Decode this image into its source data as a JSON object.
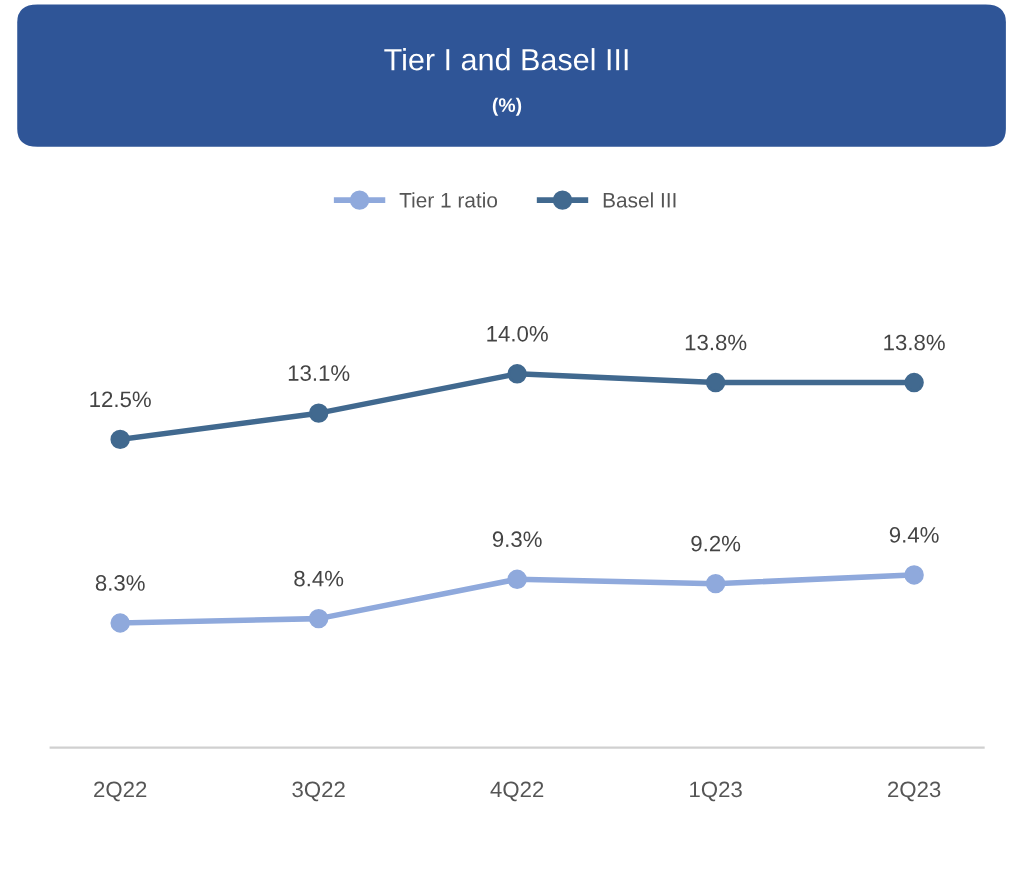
{
  "chart_data": {
    "type": "line",
    "title": "Tier I and Basel III",
    "subtitle": "(%)",
    "categories": [
      "2Q22",
      "3Q22",
      "4Q22",
      "1Q23",
      "2Q23"
    ],
    "series": [
      {
        "name": "Tier 1 ratio",
        "color": "#8fa9dc",
        "values": [
          8.3,
          8.4,
          9.3,
          9.2,
          9.4
        ],
        "value_labels": [
          "8.3%",
          "8.4%",
          "9.3%",
          "9.2%",
          "9.4%"
        ]
      },
      {
        "name": "Basel III",
        "color": "#41698f",
        "values": [
          12.5,
          13.1,
          14.0,
          13.8,
          13.8
        ],
        "value_labels": [
          "12.5%",
          "13.1%",
          "14.0%",
          "13.8%",
          "13.8%"
        ]
      }
    ],
    "tick_labels": "x",
    "grid": false,
    "legend": "top",
    "marker": "circle",
    "line_style": "solid"
  }
}
